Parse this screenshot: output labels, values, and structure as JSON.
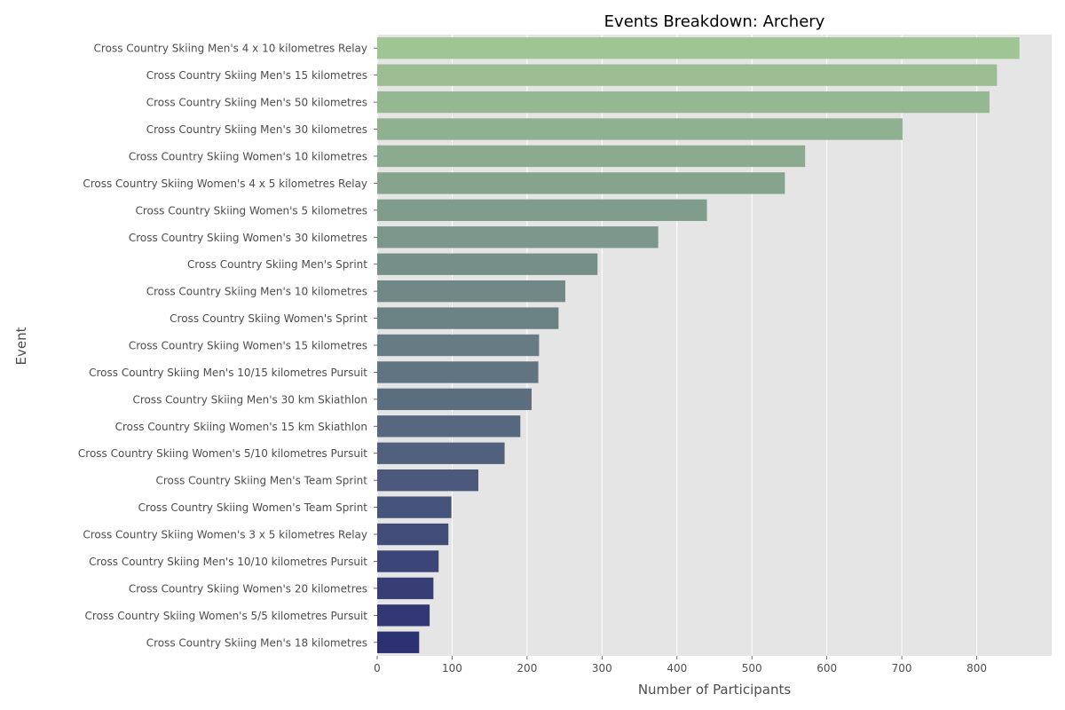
{
  "chart_data": {
    "type": "bar",
    "orientation": "horizontal",
    "title": "Events Breakdown: Archery",
    "xlabel": "Number of Participants",
    "ylabel": "Event",
    "xlim": [
      0,
      900
    ],
    "xticks": [
      0,
      100,
      200,
      300,
      400,
      500,
      600,
      700,
      800
    ],
    "grid": true,
    "palette": "crest",
    "colors": {
      "start": "#a0c595",
      "end": "#2c3172",
      "background": "#e5e5e5",
      "grid": "#ffffff"
    },
    "categories": [
      "Cross Country Skiing Men's 4 x 10 kilometres Relay",
      "Cross Country Skiing Men's 15 kilometres",
      "Cross Country Skiing Men's 50 kilometres",
      "Cross Country Skiing Men's 30 kilometres",
      "Cross Country Skiing Women's 10 kilometres",
      "Cross Country Skiing Women's 4 x 5 kilometres Relay",
      "Cross Country Skiing Women's 5 kilometres",
      "Cross Country Skiing Women's 30 kilometres",
      "Cross Country Skiing Men's Sprint",
      "Cross Country Skiing Men's 10 kilometres",
      "Cross Country Skiing Women's Sprint",
      "Cross Country Skiing Women's 15 kilometres",
      "Cross Country Skiing Men's 10/15 kilometres Pursuit",
      "Cross Country Skiing Men's 30 km Skiathlon",
      "Cross Country Skiing Women's 15 km Skiathlon",
      "Cross Country Skiing Women's 5/10 kilometres Pursuit",
      "Cross Country Skiing Men's Team Sprint",
      "Cross Country Skiing Women's Team Sprint",
      "Cross Country Skiing Women's 3 x 5 kilometres Relay",
      "Cross Country Skiing Men's 10/10 kilometres Pursuit",
      "Cross Country Skiing Women's 20 kilometres",
      "Cross Country Skiing Women's 5/5 kilometres Pursuit",
      "Cross Country Skiing Men's 18 kilometres"
    ],
    "values": [
      857,
      827,
      817,
      701,
      571,
      544,
      440,
      375,
      294,
      251,
      242,
      216,
      215,
      206,
      191,
      170,
      135,
      99,
      95,
      82,
      75,
      70,
      56
    ]
  }
}
